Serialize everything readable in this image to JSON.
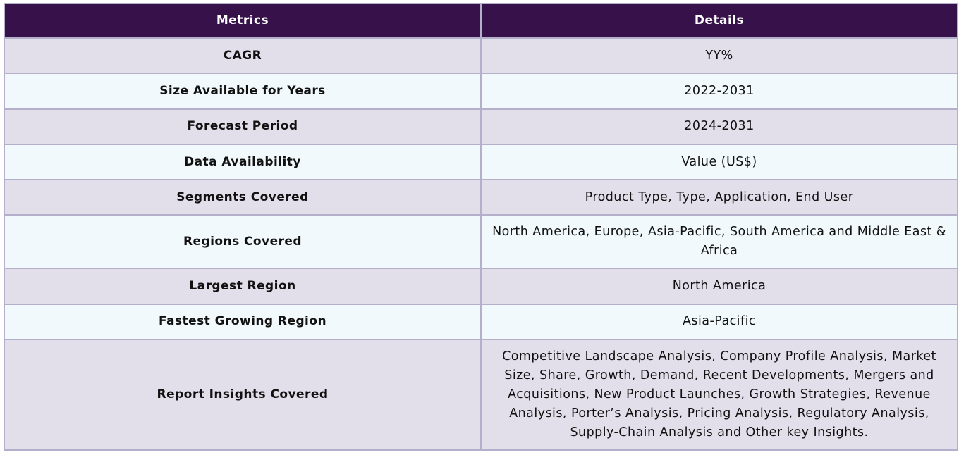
{
  "table": {
    "headers": [
      "Metrics",
      "Details"
    ],
    "rows": [
      {
        "metric": "CAGR",
        "details": "YY%"
      },
      {
        "metric": "Size Available for Years",
        "details": "2022-2031"
      },
      {
        "metric": "Forecast Period",
        "details": "2024-2031"
      },
      {
        "metric": "Data Availability",
        "details": "Value (US$)"
      },
      {
        "metric": "Segments Covered",
        "details": "Product Type, Type, Application, End User"
      },
      {
        "metric": "Regions Covered",
        "details": "North America, Europe, Asia-Pacific, South America and Middle East & Africa"
      },
      {
        "metric": "Largest Region",
        "details": "North America"
      },
      {
        "metric": "Fastest Growing Region",
        "details": "Asia-Pacific"
      },
      {
        "metric": "Report Insights Covered",
        "details": "Competitive Landscape Analysis, Company Profile Analysis, Market Size, Share, Growth, Demand, Recent Developments, Mergers and Acquisitions, New Product Launches, Growth Strategies, Revenue Analysis, Porter’s Analysis, Pricing Analysis, Regulatory Analysis, Supply-Chain Analysis and Other key Insights."
      }
    ]
  },
  "colors": {
    "header_bg": "#37114a",
    "header_text": "#ffffff",
    "row_odd_bg": "#e2dfea",
    "row_even_bg": "#f2f9fc",
    "border": "#b4b0cc"
  }
}
